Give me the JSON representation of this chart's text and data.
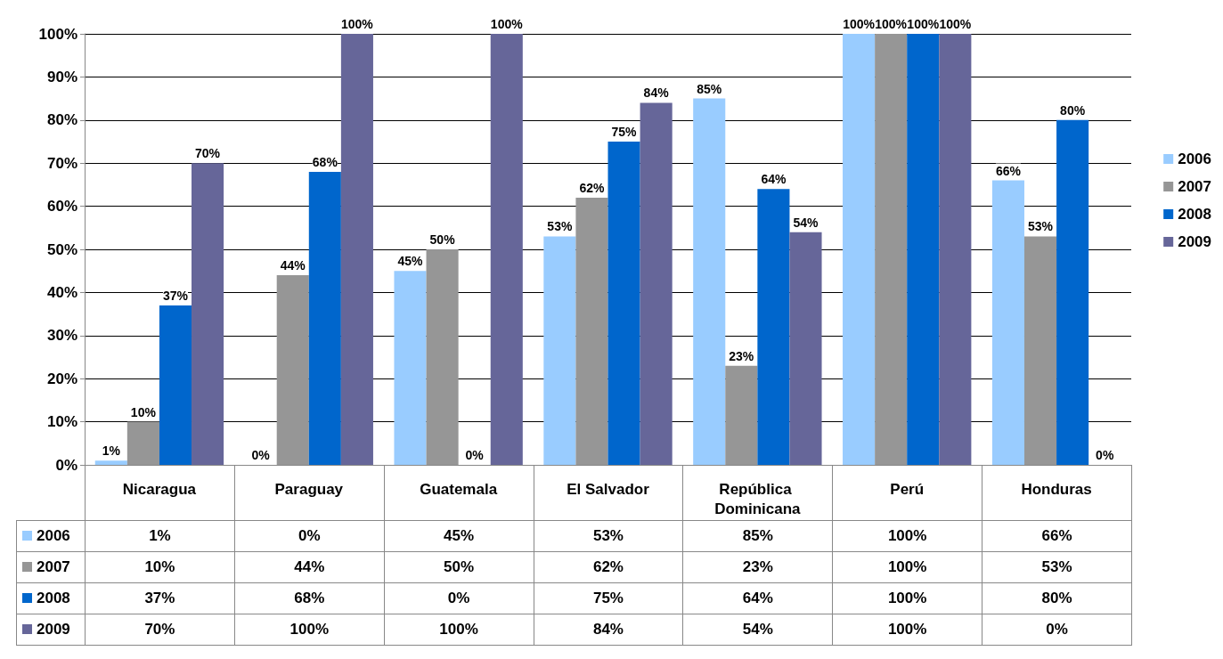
{
  "chart_data": {
    "type": "bar",
    "categories": [
      "Nicaragua",
      "Paraguay",
      "Guatemala",
      "El Salvador",
      "República Dominicana",
      "Perú",
      "Honduras"
    ],
    "series": [
      {
        "name": "2006",
        "color": "#99ccff",
        "values": [
          1,
          0,
          45,
          53,
          85,
          100,
          66
        ],
        "value_labels": [
          "1%",
          "0%",
          "45%",
          "53%",
          "85%",
          "100%",
          "66%"
        ]
      },
      {
        "name": "2007",
        "color": "#969696",
        "values": [
          10,
          44,
          50,
          62,
          23,
          100,
          53
        ],
        "value_labels": [
          "10%",
          "44%",
          "50%",
          "62%",
          "23%",
          "100%",
          "53%"
        ]
      },
      {
        "name": "2008",
        "color": "#0066cc",
        "values": [
          37,
          68,
          0,
          75,
          64,
          100,
          80
        ],
        "value_labels": [
          "37%",
          "68%",
          "0%",
          "75%",
          "64%",
          "100%",
          "80%"
        ]
      },
      {
        "name": "2009",
        "color": "#666699",
        "values": [
          70,
          100,
          100,
          84,
          54,
          100,
          0
        ],
        "value_labels": [
          "70%",
          "100%",
          "100%",
          "84%",
          "54%",
          "100%",
          "0%"
        ]
      }
    ],
    "ylim": [
      0,
      100
    ],
    "yticks": [
      {
        "value": 0,
        "label": "0%"
      },
      {
        "value": 10,
        "label": "10%"
      },
      {
        "value": 20,
        "label": "20%"
      },
      {
        "value": 30,
        "label": "30%"
      },
      {
        "value": 40,
        "label": "40%"
      },
      {
        "value": 50,
        "label": "50%"
      },
      {
        "value": 60,
        "label": "60%"
      },
      {
        "value": 70,
        "label": "70%"
      },
      {
        "value": 80,
        "label": "80%"
      },
      {
        "value": 90,
        "label": "90%"
      },
      {
        "value": 100,
        "label": "100%"
      }
    ],
    "grid": "y",
    "legend": "right"
  }
}
